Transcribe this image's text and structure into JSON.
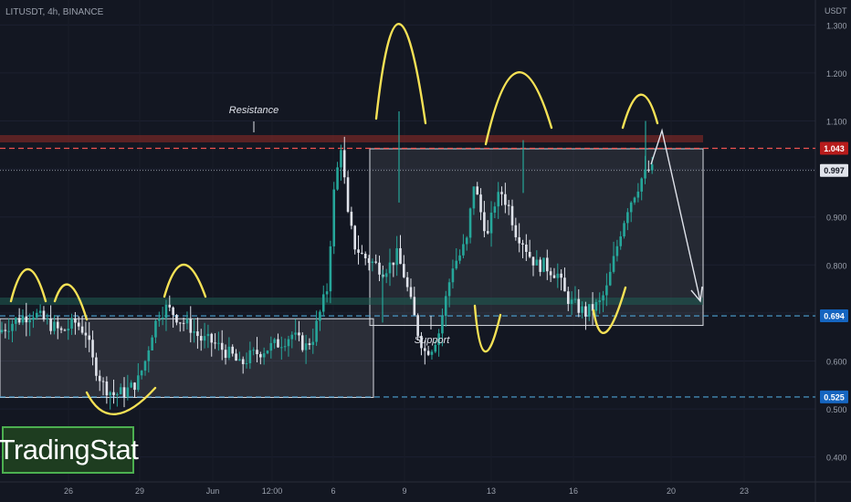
{
  "header": {
    "symbol": "LITUSDT, 4h, BINANCE",
    "currency": "USDT"
  },
  "watermark": {
    "text": "TradingStat"
  },
  "annotations": {
    "resistance": "Resistance",
    "support": "Support"
  },
  "colors": {
    "background": "#131722",
    "up": "#26a69a",
    "down": "#e0e3eb",
    "resistance_line": "#ef5350",
    "support_line": "#4da3d4",
    "highlight": "#f5e155",
    "arrow": "#e0e3eb"
  },
  "chart_data": {
    "type": "candlestick",
    "title": "LITUSDT, 4h, BINANCE",
    "ylabel": "USDT",
    "ylim": [
      0.348,
      1.352
    ],
    "y_ticks": [
      "0.400",
      "0.500",
      "0.600",
      "0.700",
      "0.800",
      "0.900",
      "1.000",
      "1.100",
      "1.200",
      "1.300"
    ],
    "x_ticks": [
      "26",
      "29",
      "Jun",
      "12:00",
      "6",
      "9",
      "13",
      "16",
      "20",
      "23"
    ],
    "price_badges": [
      {
        "label": "1.043",
        "value": 1.043,
        "kind": "resistance"
      },
      {
        "label": "0.997",
        "value": 0.997,
        "kind": "last"
      },
      {
        "label": "0.694",
        "value": 0.694,
        "kind": "support"
      },
      {
        "label": "0.525",
        "value": 0.525,
        "kind": "support"
      }
    ],
    "levels": {
      "resistance": 1.043,
      "support": 0.694,
      "lower_support": 0.525
    },
    "ranges": [
      {
        "name": "lower range",
        "top": 0.688,
        "bottom": 0.524
      },
      {
        "name": "upper range",
        "top": 1.042,
        "bottom": 0.674
      }
    ],
    "path": [
      [
        0,
        0.66
      ],
      [
        5,
        0.685
      ],
      [
        10,
        0.7
      ],
      [
        14,
        0.68
      ],
      [
        18,
        0.66
      ],
      [
        22,
        0.68
      ],
      [
        25,
        0.66
      ],
      [
        27,
        0.6
      ],
      [
        30,
        0.55
      ],
      [
        33,
        0.53
      ],
      [
        36,
        0.535
      ],
      [
        38,
        0.545
      ],
      [
        40,
        0.56
      ],
      [
        42,
        0.6
      ],
      [
        44,
        0.66
      ],
      [
        46,
        0.7
      ],
      [
        48,
        0.71
      ],
      [
        50,
        0.7
      ],
      [
        52,
        0.685
      ],
      [
        55,
        0.67
      ],
      [
        58,
        0.645
      ],
      [
        61,
        0.64
      ],
      [
        64,
        0.625
      ],
      [
        67,
        0.61
      ],
      [
        69,
        0.59
      ],
      [
        72,
        0.61
      ],
      [
        75,
        0.62
      ],
      [
        78,
        0.63
      ],
      [
        81,
        0.64
      ],
      [
        84,
        0.655
      ],
      [
        86,
        0.64
      ],
      [
        88,
        0.63
      ],
      [
        90,
        0.65
      ],
      [
        92,
        0.7
      ],
      [
        94,
        0.75
      ],
      [
        96,
        0.95
      ],
      [
        98,
        1.05
      ],
      [
        100,
        0.9
      ],
      [
        102,
        0.84
      ],
      [
        104,
        0.82
      ],
      [
        106,
        0.81
      ],
      [
        108,
        0.8
      ],
      [
        110,
        0.79
      ],
      [
        112,
        0.8
      ],
      [
        114,
        0.82
      ],
      [
        116,
        0.78
      ],
      [
        118,
        0.72
      ],
      [
        120,
        0.66
      ],
      [
        122,
        0.62
      ],
      [
        124,
        0.63
      ],
      [
        126,
        0.66
      ],
      [
        128,
        0.73
      ],
      [
        130,
        0.8
      ],
      [
        132,
        0.82
      ],
      [
        134,
        0.85
      ],
      [
        136,
        0.97
      ],
      [
        138,
        0.91
      ],
      [
        140,
        0.86
      ],
      [
        142,
        0.93
      ],
      [
        144,
        0.95
      ],
      [
        146,
        0.92
      ],
      [
        148,
        0.87
      ],
      [
        150,
        0.85
      ],
      [
        152,
        0.82
      ],
      [
        154,
        0.8
      ],
      [
        156,
        0.8
      ],
      [
        158,
        0.79
      ],
      [
        160,
        0.78
      ],
      [
        162,
        0.74
      ],
      [
        164,
        0.72
      ],
      [
        166,
        0.71
      ],
      [
        168,
        0.7
      ],
      [
        170,
        0.71
      ],
      [
        172,
        0.72
      ],
      [
        174,
        0.75
      ],
      [
        176,
        0.81
      ],
      [
        178,
        0.87
      ],
      [
        180,
        0.92
      ],
      [
        182,
        0.95
      ],
      [
        184,
        0.98
      ],
      [
        186,
        0.997
      ]
    ]
  }
}
